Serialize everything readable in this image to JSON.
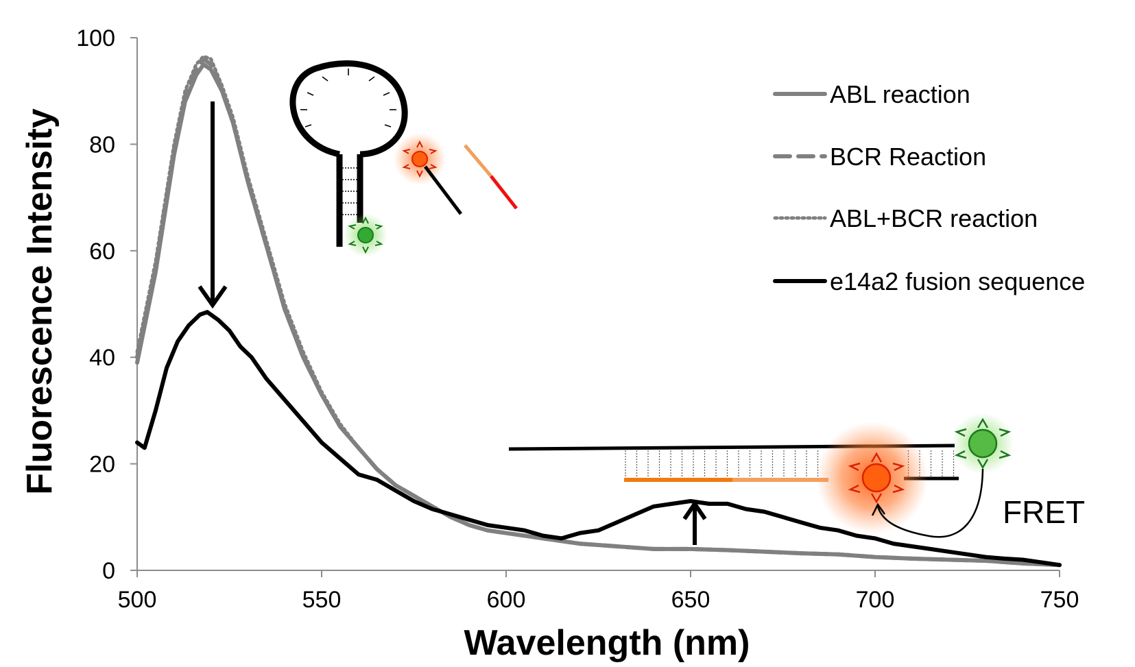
{
  "chart_data": {
    "type": "line",
    "xlabel": "Wavelength (nm)",
    "ylabel": "Fluorescence Intensity",
    "xlim": [
      500,
      750
    ],
    "ylim": [
      0,
      100
    ],
    "xticks": [
      "500",
      "550",
      "600",
      "650",
      "700",
      "750"
    ],
    "yticks": [
      "0",
      "20",
      "40",
      "60",
      "80",
      "100"
    ],
    "grid": false,
    "legend_position": "top-right",
    "series": [
      {
        "name": "ABL reaction",
        "style": "solid",
        "color": "#808080",
        "points": [
          [
            500,
            39
          ],
          [
            505,
            56
          ],
          [
            510,
            78
          ],
          [
            513,
            88
          ],
          [
            516,
            93
          ],
          [
            518,
            95
          ],
          [
            520,
            94
          ],
          [
            523,
            90
          ],
          [
            526,
            84
          ],
          [
            530,
            73
          ],
          [
            535,
            61
          ],
          [
            540,
            49
          ],
          [
            545,
            40
          ],
          [
            550,
            33
          ],
          [
            555,
            27
          ],
          [
            560,
            23
          ],
          [
            565,
            19
          ],
          [
            570,
            16
          ],
          [
            575,
            14
          ],
          [
            580,
            12
          ],
          [
            585,
            10
          ],
          [
            590,
            8.5
          ],
          [
            595,
            7.5
          ],
          [
            600,
            7
          ],
          [
            610,
            6
          ],
          [
            620,
            5
          ],
          [
            630,
            4.5
          ],
          [
            640,
            4
          ],
          [
            650,
            4
          ],
          [
            660,
            3.8
          ],
          [
            670,
            3.5
          ],
          [
            680,
            3.2
          ],
          [
            690,
            3
          ],
          [
            700,
            2.5
          ],
          [
            710,
            2.2
          ],
          [
            720,
            2
          ],
          [
            730,
            1.8
          ],
          [
            740,
            1.3
          ],
          [
            750,
            1
          ]
        ]
      },
      {
        "name": "BCR Reaction",
        "style": "dashed",
        "color": "#808080",
        "points": [
          [
            500,
            40
          ],
          [
            505,
            57
          ],
          [
            510,
            79
          ],
          [
            513,
            89
          ],
          [
            516,
            94
          ],
          [
            518,
            96
          ],
          [
            520,
            95
          ],
          [
            523,
            90
          ],
          [
            526,
            84
          ],
          [
            530,
            73
          ],
          [
            535,
            61
          ],
          [
            540,
            49
          ],
          [
            545,
            40
          ],
          [
            550,
            33
          ],
          [
            555,
            27
          ],
          [
            560,
            23
          ],
          [
            565,
            19
          ],
          [
            570,
            16
          ],
          [
            575,
            14
          ],
          [
            580,
            12
          ],
          [
            585,
            10
          ],
          [
            590,
            8.5
          ],
          [
            595,
            7.5
          ],
          [
            600,
            7
          ],
          [
            610,
            6
          ],
          [
            620,
            5
          ],
          [
            630,
            4.5
          ],
          [
            640,
            4
          ],
          [
            650,
            4
          ],
          [
            660,
            3.8
          ],
          [
            670,
            3.5
          ],
          [
            680,
            3.2
          ],
          [
            690,
            3
          ],
          [
            700,
            2.5
          ],
          [
            710,
            2.2
          ],
          [
            720,
            2
          ],
          [
            730,
            1.8
          ],
          [
            740,
            1.3
          ],
          [
            750,
            1
          ]
        ]
      },
      {
        "name": "ABL+BCR reaction",
        "style": "dotted",
        "color": "#808080",
        "points": [
          [
            500,
            41
          ],
          [
            505,
            58
          ],
          [
            510,
            80
          ],
          [
            513,
            90
          ],
          [
            516,
            95
          ],
          [
            518,
            96.5
          ],
          [
            520,
            96
          ],
          [
            523,
            91
          ],
          [
            526,
            85
          ],
          [
            530,
            74
          ],
          [
            535,
            62
          ],
          [
            540,
            50
          ],
          [
            545,
            41
          ],
          [
            550,
            33.5
          ],
          [
            555,
            27.5
          ],
          [
            560,
            23
          ],
          [
            565,
            19
          ],
          [
            570,
            16
          ],
          [
            575,
            14
          ],
          [
            580,
            12
          ],
          [
            585,
            10
          ],
          [
            590,
            8.5
          ],
          [
            595,
            7.5
          ],
          [
            600,
            7
          ],
          [
            610,
            6
          ],
          [
            620,
            5
          ],
          [
            630,
            4.5
          ],
          [
            640,
            4
          ],
          [
            650,
            4
          ],
          [
            660,
            3.8
          ],
          [
            670,
            3.5
          ],
          [
            680,
            3.2
          ],
          [
            690,
            3
          ],
          [
            700,
            2.5
          ],
          [
            710,
            2.2
          ],
          [
            720,
            2
          ],
          [
            730,
            1.8
          ],
          [
            740,
            1.3
          ],
          [
            750,
            1
          ]
        ]
      },
      {
        "name": "e14a2 fusion sequence",
        "style": "solid",
        "color": "#000000",
        "points": [
          [
            500,
            24
          ],
          [
            502,
            23
          ],
          [
            505,
            30
          ],
          [
            508,
            38
          ],
          [
            511,
            43
          ],
          [
            514,
            46
          ],
          [
            517,
            48
          ],
          [
            519,
            48.5
          ],
          [
            522,
            47
          ],
          [
            525,
            45
          ],
          [
            528,
            42
          ],
          [
            531,
            40
          ],
          [
            535,
            36
          ],
          [
            540,
            32
          ],
          [
            545,
            28
          ],
          [
            550,
            24
          ],
          [
            555,
            21
          ],
          [
            560,
            18
          ],
          [
            565,
            17
          ],
          [
            570,
            15
          ],
          [
            575,
            13
          ],
          [
            580,
            11.5
          ],
          [
            585,
            10.5
          ],
          [
            590,
            9.5
          ],
          [
            595,
            8.5
          ],
          [
            600,
            8
          ],
          [
            605,
            7.5
          ],
          [
            610,
            6.5
          ],
          [
            615,
            6
          ],
          [
            620,
            7
          ],
          [
            625,
            7.5
          ],
          [
            630,
            9
          ],
          [
            635,
            10.5
          ],
          [
            640,
            12
          ],
          [
            645,
            12.5
          ],
          [
            650,
            13
          ],
          [
            655,
            12.5
          ],
          [
            660,
            12.5
          ],
          [
            665,
            11.5
          ],
          [
            670,
            11
          ],
          [
            675,
            10
          ],
          [
            680,
            9
          ],
          [
            685,
            8
          ],
          [
            690,
            7.5
          ],
          [
            695,
            6.5
          ],
          [
            700,
            6
          ],
          [
            705,
            5
          ],
          [
            710,
            4.5
          ],
          [
            715,
            4
          ],
          [
            720,
            3.5
          ],
          [
            725,
            3
          ],
          [
            730,
            2.5
          ],
          [
            735,
            2.2
          ],
          [
            740,
            2
          ],
          [
            745,
            1.5
          ],
          [
            750,
            1
          ]
        ]
      }
    ],
    "annotations": {
      "fret_label": "FRET",
      "dye_colors": {
        "donor": "#33aa33",
        "acceptor": "#ff4400"
      },
      "strand_colors": {
        "abl_segment": "#f07a10",
        "bcr_segment": "#f0a060",
        "red_segment": "#ee1111"
      }
    }
  }
}
